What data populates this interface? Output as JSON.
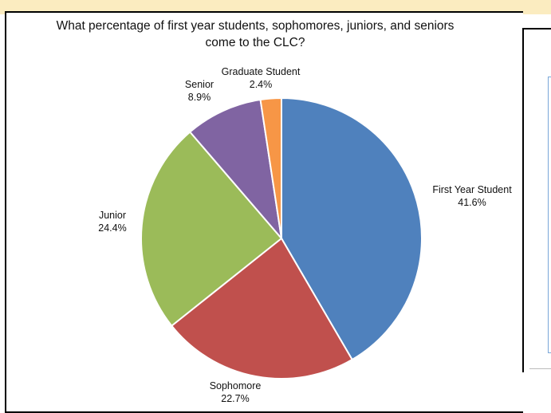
{
  "chart_data": {
    "type": "pie",
    "title": "What percentage of first year students, sophomores, juniors, and seniors come to the CLC?",
    "slices": [
      {
        "label": "First Year Student",
        "value": 41.6,
        "value_text": "41.6%",
        "color": "#4f81bd"
      },
      {
        "label": "Sophomore",
        "value": 22.7,
        "value_text": "22.7%",
        "color": "#c0504d"
      },
      {
        "label": "Junior",
        "value": 24.4,
        "value_text": "24.4%",
        "color": "#9bbb59"
      },
      {
        "label": "Senior",
        "value": 8.9,
        "value_text": "8.9%",
        "color": "#8064a2"
      },
      {
        "label": "Graduate Student",
        "value": 2.4,
        "value_text": "2.4%",
        "color": "#f79646"
      }
    ],
    "start_angle": "12 o'clock",
    "direction": "clockwise",
    "legend": "none",
    "labels": "outside slices"
  },
  "colors": {
    "background": "#ffffff",
    "top_band": "#fbecc0",
    "slice_border": "#ffffff"
  }
}
